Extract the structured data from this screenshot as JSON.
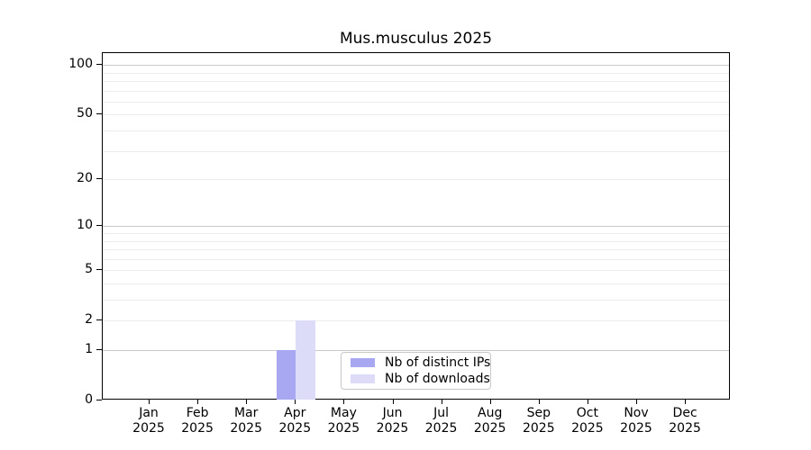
{
  "chart_data": {
    "type": "bar",
    "title": "Mus.musculus 2025",
    "categories": [
      "Jan",
      "Feb",
      "Mar",
      "Apr",
      "May",
      "Jun",
      "Jul",
      "Aug",
      "Sep",
      "Oct",
      "Nov",
      "Dec"
    ],
    "category_year": "2025",
    "series": [
      {
        "name": "Nb of distinct IPs",
        "color": "#a7a7f2",
        "values": [
          0,
          0,
          0,
          1,
          0,
          0,
          0,
          0,
          0,
          0,
          0,
          0
        ]
      },
      {
        "name": "Nb of downloads",
        "color": "#dcdcf8",
        "values": [
          0,
          0,
          0,
          2,
          0,
          0,
          0,
          0,
          0,
          0,
          0,
          0
        ]
      }
    ],
    "xlabel": "",
    "ylabel": "",
    "y_axis": {
      "scale": "log1p",
      "ticks": [
        0,
        1,
        2,
        5,
        10,
        20,
        50,
        100
      ],
      "minor_gridlines": [
        2,
        3,
        4,
        5,
        6,
        7,
        8,
        9,
        20,
        30,
        40,
        50,
        60,
        70,
        80,
        90
      ],
      "major_gridlines": [
        1,
        10,
        100
      ],
      "ylim": [
        0,
        117
      ]
    },
    "grid": "horizontal",
    "colors": {
      "major_gridline": "#c9c9c9",
      "minor_gridline": "#ececec",
      "axis": "#000000"
    },
    "legend": {
      "position": "bottom-center",
      "entries": [
        "Nb of distinct IPs",
        "Nb of downloads"
      ]
    }
  }
}
